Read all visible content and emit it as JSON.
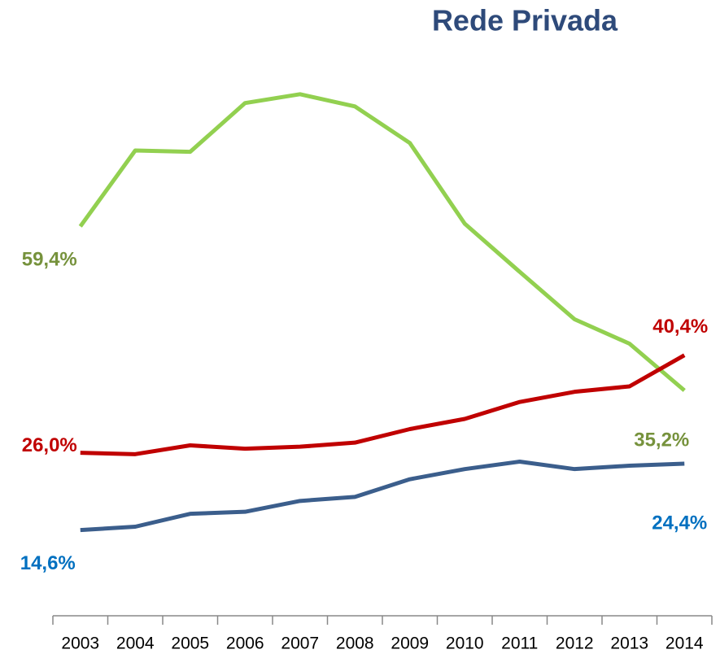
{
  "chart_data": {
    "type": "line",
    "title": "Rede Privada",
    "categories": [
      "2003",
      "2004",
      "2005",
      "2006",
      "2007",
      "2008",
      "2009",
      "2010",
      "2011",
      "2012",
      "2013",
      "2014"
    ],
    "ylim": [
      10,
      82
    ],
    "series": [
      {
        "color": "#92d050",
        "label_color": "#76923c",
        "values": [
          59.4,
          70.6,
          70.4,
          77.6,
          78.9,
          77.1,
          71.7,
          59.8,
          52.7,
          45.7,
          42.1,
          35.2
        ],
        "value_labels": [
          "59,4%",
          null,
          null,
          null,
          null,
          null,
          null,
          null,
          null,
          null,
          null,
          "35,2%"
        ]
      },
      {
        "color": "#c00000",
        "label_color": "#c00000",
        "values": [
          26.0,
          25.8,
          27.1,
          26.6,
          26.9,
          27.5,
          29.5,
          31.0,
          33.5,
          35.0,
          35.8,
          40.4
        ],
        "value_labels": [
          "26,0%",
          null,
          null,
          null,
          null,
          null,
          null,
          null,
          null,
          null,
          null,
          "40,4%"
        ]
      },
      {
        "color": "#3b5e8c",
        "label_color": "#0070c0",
        "values": [
          14.6,
          15.1,
          17.0,
          17.3,
          18.9,
          19.5,
          22.1,
          23.6,
          24.7,
          23.6,
          24.1,
          24.4
        ],
        "value_labels": [
          "14,6%",
          null,
          null,
          null,
          null,
          null,
          null,
          null,
          null,
          null,
          null,
          "24,4%"
        ]
      }
    ]
  }
}
